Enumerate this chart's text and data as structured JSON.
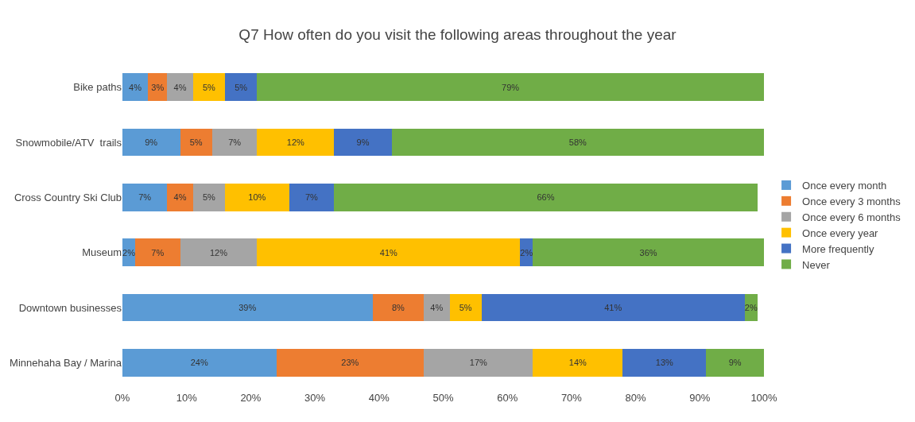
{
  "chart_data": {
    "type": "bar",
    "orientation": "horizontal",
    "stacked": true,
    "title": "Q7 How often do you visit the following areas throughout the year",
    "categories": [
      "Bike paths",
      "Snowmobile/ATV  trails",
      "Cross Country Ski Club",
      "Museum",
      "Downtown businesses",
      "Minnehaha Bay / Marina"
    ],
    "series": [
      {
        "name": "Once every month",
        "color": "#5b9bd5",
        "values": [
          4,
          9,
          7,
          2,
          39,
          24
        ],
        "value_labels": [
          "4%",
          "9%",
          "7%",
          "2%",
          "39%",
          "24%"
        ]
      },
      {
        "name": "Once every 3 months",
        "color": "#ed7d31",
        "values": [
          3,
          5,
          4,
          7,
          8,
          23
        ],
        "value_labels": [
          "3%",
          "5%",
          "4%",
          "7%",
          "8%",
          "23%"
        ]
      },
      {
        "name": "Once every 6 months",
        "color": "#a5a5a5",
        "values": [
          4,
          7,
          5,
          12,
          4,
          17
        ],
        "value_labels": [
          "4%",
          "7%",
          "5%",
          "12%",
          "4%",
          "17%"
        ]
      },
      {
        "name": "Once every year",
        "color": "#ffc000",
        "values": [
          5,
          12,
          10,
          41,
          5,
          14
        ],
        "value_labels": [
          "5%",
          "12%",
          "10%",
          "41%",
          "5%",
          "14%"
        ]
      },
      {
        "name": "More frequently",
        "color": "#4472c4",
        "values": [
          5,
          9,
          7,
          2,
          41,
          13
        ],
        "value_labels": [
          "5%",
          "9%",
          "7%",
          "2%",
          "41%",
          "13%"
        ]
      },
      {
        "name": "Never",
        "color": "#70ad47",
        "values": [
          79,
          58,
          66,
          36,
          2,
          9
        ],
        "value_labels": [
          "79%",
          "58%",
          "66%",
          "36%",
          "2%",
          "9%"
        ]
      }
    ],
    "xlim": [
      0,
      100
    ],
    "xticks": [
      {
        "value": 0,
        "label": "0%"
      },
      {
        "value": 10,
        "label": "10%"
      },
      {
        "value": 20,
        "label": "20%"
      },
      {
        "value": 30,
        "label": "30%"
      },
      {
        "value": 40,
        "label": "40%"
      },
      {
        "value": 50,
        "label": "50%"
      },
      {
        "value": 60,
        "label": "60%"
      },
      {
        "value": 70,
        "label": "70%"
      },
      {
        "value": 80,
        "label": "80%"
      },
      {
        "value": 90,
        "label": "90%"
      },
      {
        "value": 100,
        "label": "100%"
      }
    ],
    "legend": "right"
  }
}
